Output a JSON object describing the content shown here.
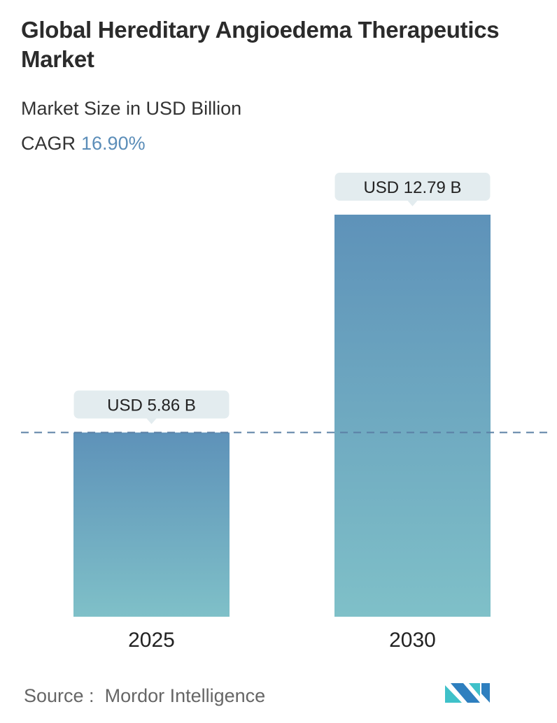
{
  "header": {
    "title": "Global Hereditary Angioedema Therapeutics Market",
    "subtitle": "Market Size in USD Billion",
    "cagr_label": "CAGR",
    "cagr_value": "16.90%"
  },
  "chart_data": {
    "type": "bar",
    "categories": [
      "2025",
      "2030"
    ],
    "values": [
      5.86,
      12.79
    ],
    "data_labels": [
      "USD 5.86 B",
      "USD 12.79 B"
    ],
    "unit": "USD Billion",
    "reference_line": {
      "value": 5.86,
      "style": "dashed"
    },
    "grid": false,
    "colors": {
      "bar_top": "#5e92b9",
      "bar_bottom": "#7fc0c8",
      "label_bg": "#e3ecef",
      "ref_line": "#5b80a5"
    }
  },
  "footer": {
    "source_label": "Source :",
    "source_value": "Mordor Intelligence",
    "logo": "Mordor Intelligence logo"
  }
}
